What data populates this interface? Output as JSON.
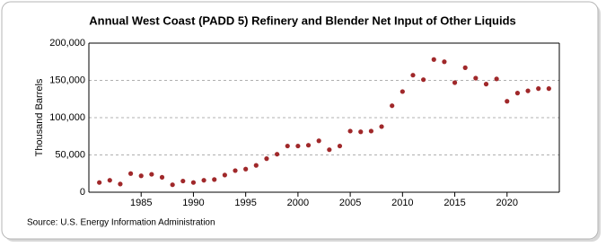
{
  "chart_data": {
    "type": "scatter",
    "title": "Annual West Coast (PADD 5) Refinery and Blender Net Input of Other Liquids",
    "y_label": "Thousand Barrels",
    "source": "Source: U.S. Energy Information Administration",
    "x": [
      1981,
      1982,
      1983,
      1984,
      1985,
      1986,
      1987,
      1988,
      1989,
      1990,
      1991,
      1992,
      1993,
      1994,
      1995,
      1996,
      1997,
      1998,
      1999,
      2000,
      2001,
      2002,
      2003,
      2004,
      2005,
      2006,
      2007,
      2008,
      2009,
      2010,
      2011,
      2012,
      2013,
      2014,
      2015,
      2016,
      2017,
      2018,
      2019,
      2020,
      2021,
      2022,
      2023,
      2024
    ],
    "values": [
      13000,
      16000,
      11000,
      25000,
      22000,
      24000,
      20000,
      10000,
      15000,
      13000,
      16000,
      17000,
      23000,
      29000,
      31000,
      36000,
      45000,
      51000,
      62000,
      62000,
      63000,
      69000,
      57000,
      62000,
      82000,
      81000,
      82000,
      88000,
      116000,
      135000,
      157000,
      151000,
      178000,
      175000,
      147000,
      167000,
      153000,
      145000,
      152000,
      122000,
      133000,
      136000,
      139000,
      139000
    ],
    "color": "#a0282a",
    "xlim": [
      1980,
      2025
    ],
    "xticks": [
      1985,
      1990,
      1995,
      2000,
      2005,
      2010,
      2015,
      2020
    ],
    "ylim": [
      0,
      200000
    ],
    "yticks": [
      0,
      {
        "value": 50000,
        "label": "50,000"
      },
      {
        "value": 100000,
        "label": "100,000"
      },
      {
        "value": 150000,
        "label": "150,000"
      },
      {
        "value": 200000,
        "label": "200,000"
      }
    ],
    "grid": true
  }
}
